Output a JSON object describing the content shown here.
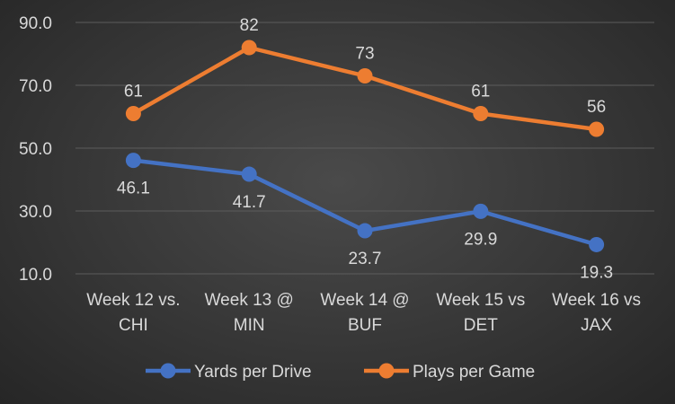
{
  "chart_data": {
    "type": "line",
    "title": "",
    "xlabel": "",
    "ylabel": "",
    "categories": [
      [
        "Week 12 vs.",
        "CHI"
      ],
      [
        "Week 13 @",
        "MIN"
      ],
      [
        "Week 14 @",
        "BUF"
      ],
      [
        "Week 15 vs",
        "DET"
      ],
      [
        "Week 16 vs",
        "JAX"
      ]
    ],
    "y_ticks": [
      "10.0",
      "30.0",
      "50.0",
      "70.0",
      "90.0"
    ],
    "ylim": [
      10,
      90
    ],
    "grid": true,
    "legend_position": "bottom",
    "series": [
      {
        "name": "Yards per Drive",
        "color": "#4472C4",
        "values": [
          46.1,
          41.7,
          23.7,
          29.9,
          19.3
        ],
        "labels": [
          "46.1",
          "41.7",
          "23.7",
          "29.9",
          "19.3"
        ],
        "label_position": "below"
      },
      {
        "name": "Plays per Game",
        "color": "#ED7D31",
        "values": [
          61,
          82,
          73,
          61,
          56
        ],
        "labels": [
          "61",
          "82",
          "73",
          "61",
          "56"
        ],
        "label_position": "above"
      }
    ]
  }
}
